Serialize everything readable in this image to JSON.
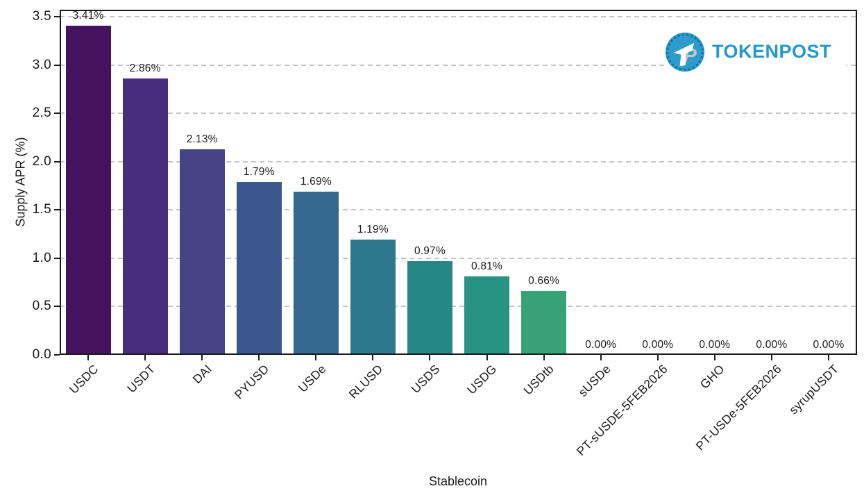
{
  "logo": {
    "text": "TOKENPOST",
    "brand_color": "#2697cb",
    "icon_circle_color": "#2b9ccb",
    "icon_dash_color": "#16719b",
    "icon_p_color": "#c3c7ca",
    "icon_t_color": "#ffffff"
  },
  "chart_data": {
    "type": "bar",
    "title": "",
    "xlabel": "Stablecoin",
    "ylabel": "Supply APR (%)",
    "categories": [
      "USDC",
      "USDT",
      "DAI",
      "PYUSD",
      "USDe",
      "RLUSD",
      "USDS",
      "USDG",
      "USDtb",
      "sUSDe",
      "PT-sUSDE-5FEB2026",
      "GHO",
      "PT-USDe-5FEB2026",
      "syrupUSDT"
    ],
    "values": [
      3.41,
      2.86,
      2.13,
      1.79,
      1.69,
      1.19,
      0.97,
      0.81,
      0.66,
      0,
      0,
      0,
      0,
      0
    ],
    "bar_labels": [
      "3.41%",
      "2.86%",
      "2.13%",
      "1.79%",
      "1.69%",
      "1.19%",
      "0.97%",
      "0.81%",
      "0.66%",
      "0.00%",
      "0.00%",
      "0.00%",
      "0.00%",
      "0.00%"
    ],
    "bar_colors": [
      "#451260",
      "#472d7b",
      "#454487",
      "#3c578b",
      "#34688d",
      "#2d788c",
      "#278688",
      "#299383",
      "#37a374",
      "#44b56a",
      "#63c453",
      "#94d341",
      "#c9df26",
      "#fde725"
    ],
    "yticks": [
      "0.0",
      "0.5",
      "1.0",
      "1.5",
      "2.0",
      "2.5",
      "3.0",
      "3.5"
    ],
    "ylim": [
      0,
      3.5
    ],
    "grid": "horizontal-dashed",
    "legend": "none",
    "colormap": "viridis"
  }
}
